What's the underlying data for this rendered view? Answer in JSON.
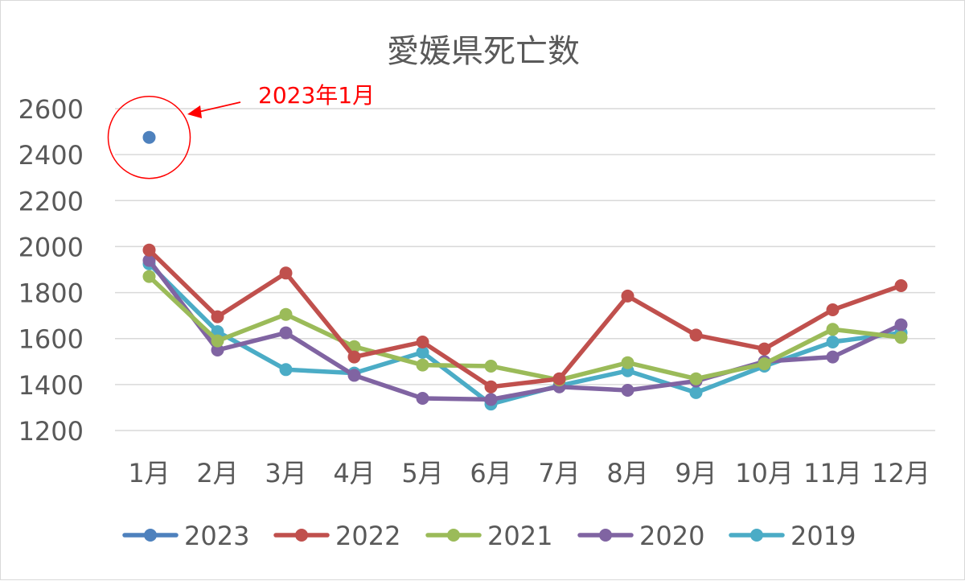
{
  "chart_data": {
    "type": "line",
    "title": "愛媛県死亡数",
    "categories": [
      "1月",
      "2月",
      "3月",
      "4月",
      "5月",
      "6月",
      "7月",
      "8月",
      "9月",
      "10月",
      "11月",
      "12月"
    ],
    "ylim": [
      1200,
      2600
    ],
    "yticks": [
      1200,
      1400,
      1600,
      1800,
      2000,
      2200,
      2400,
      2600
    ],
    "grid": true,
    "legend_position": "bottom",
    "series": [
      {
        "name": "2023",
        "color": "#4e81bd",
        "values": [
          2475,
          null,
          null,
          null,
          null,
          null,
          null,
          null,
          null,
          null,
          null,
          null
        ]
      },
      {
        "name": "2022",
        "color": "#c0504d",
        "values": [
          1985,
          1695,
          1885,
          1520,
          1585,
          1390,
          1425,
          1785,
          1615,
          1555,
          1725,
          1830
        ]
      },
      {
        "name": "2021",
        "color": "#9bbb59",
        "values": [
          1870,
          1590,
          1705,
          1565,
          1485,
          1480,
          1420,
          1495,
          1425,
          1490,
          1640,
          1605
        ]
      },
      {
        "name": "2020",
        "color": "#8064a2",
        "values": [
          1940,
          1550,
          1625,
          1440,
          1340,
          1335,
          1390,
          1375,
          1415,
          1500,
          1520,
          1660
        ]
      },
      {
        "name": "2019",
        "color": "#4bacc6",
        "values": [
          1925,
          1630,
          1465,
          1450,
          1540,
          1315,
          1395,
          1460,
          1365,
          1480,
          1585,
          1625
        ]
      }
    ],
    "annotation": {
      "text": "2023年1月",
      "color": "#ff0000"
    }
  }
}
